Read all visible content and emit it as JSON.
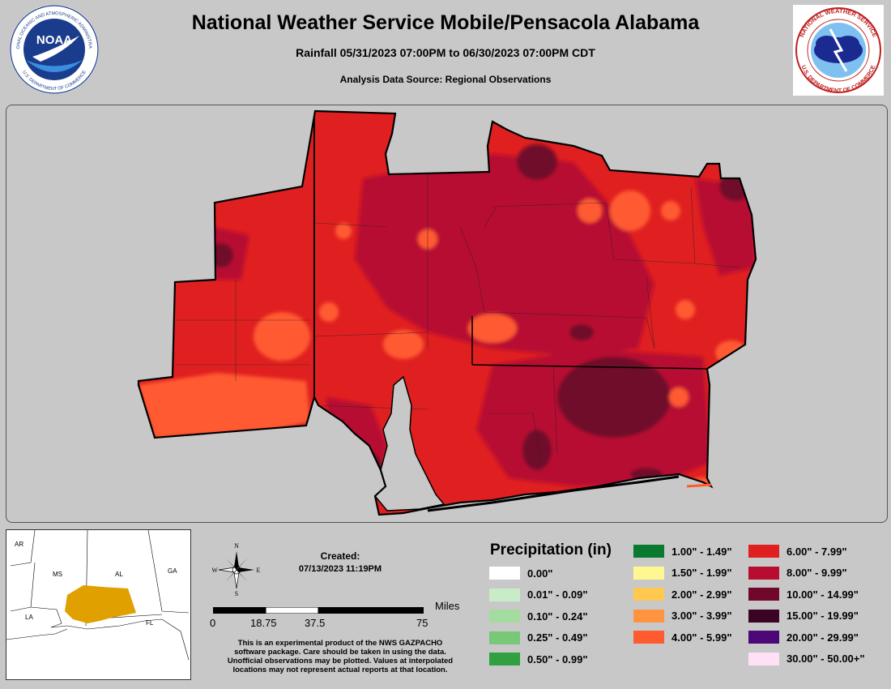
{
  "header": {
    "title": "National Weather Service Mobile/Pensacola Alabama",
    "subtitle": "Rainfall 05/31/2023 07:00PM to 06/30/2023 07:00PM CDT",
    "source": "Analysis Data Source: Regional Observations"
  },
  "logos": {
    "noaa_text": "NOAA",
    "noaa_ring": "NATIONAL OCEANIC AND ATMOSPHERIC ADMINISTRATION",
    "noaa_ring_bottom": "U.S. DEPARTMENT OF COMMERCE",
    "nws_ring": "NATIONAL WEATHER SERVICE",
    "nws_ring_bottom": "U.S. DEPARTMENT OF COMMERCE"
  },
  "inset": {
    "states": [
      "AR",
      "MS",
      "AL",
      "GA",
      "LA",
      "FL"
    ],
    "highlight_color": "#e0a000"
  },
  "compass": {
    "n": "N",
    "s": "S",
    "e": "E",
    "w": "W"
  },
  "created": {
    "label": "Created:",
    "value": "07/13/2023 11:19PM"
  },
  "scale": {
    "ticks": [
      "0",
      "18.75",
      "37.5",
      "75"
    ],
    "unit": "Miles"
  },
  "disclaimer": [
    "This is an experimental product of the NWS GAZPACHO",
    "software package. Care should be taken in using the data.",
    "Unofficial observations may be plotted. Values at interpolated",
    "locations may not represent actual reports at that location."
  ],
  "legend": {
    "title": "Precipitation (in)",
    "items": [
      {
        "label": "0.00\"",
        "color": "#ffffff"
      },
      {
        "label": "0.01\" - 0.09\"",
        "color": "#c8ecc8"
      },
      {
        "label": "0.10\" - 0.24\"",
        "color": "#a4dca0"
      },
      {
        "label": "0.25\" - 0.49\"",
        "color": "#78c878"
      },
      {
        "label": "0.50\" - 0.99\"",
        "color": "#30a040"
      },
      {
        "label": "1.00\" - 1.49\"",
        "color": "#0a7a30"
      },
      {
        "label": "1.50\" - 1.99\"",
        "color": "#fff890"
      },
      {
        "label": "2.00\" - 2.99\"",
        "color": "#ffc850"
      },
      {
        "label": "3.00\" - 3.99\"",
        "color": "#ff9440"
      },
      {
        "label": "4.00\" - 5.99\"",
        "color": "#ff5a30"
      },
      {
        "label": "6.00\" - 7.99\"",
        "color": "#e02020"
      },
      {
        "label": "8.00\" - 9.99\"",
        "color": "#b80c30"
      },
      {
        "label": "10.00\" - 14.99\"",
        "color": "#70082a"
      },
      {
        "label": "15.00\" - 19.99\"",
        "color": "#3c0424"
      },
      {
        "label": "20.00\" - 29.99\"",
        "color": "#4c0878"
      },
      {
        "label": "30.00\" - 50.00+\"",
        "color": "#ffe0f4"
      }
    ]
  }
}
